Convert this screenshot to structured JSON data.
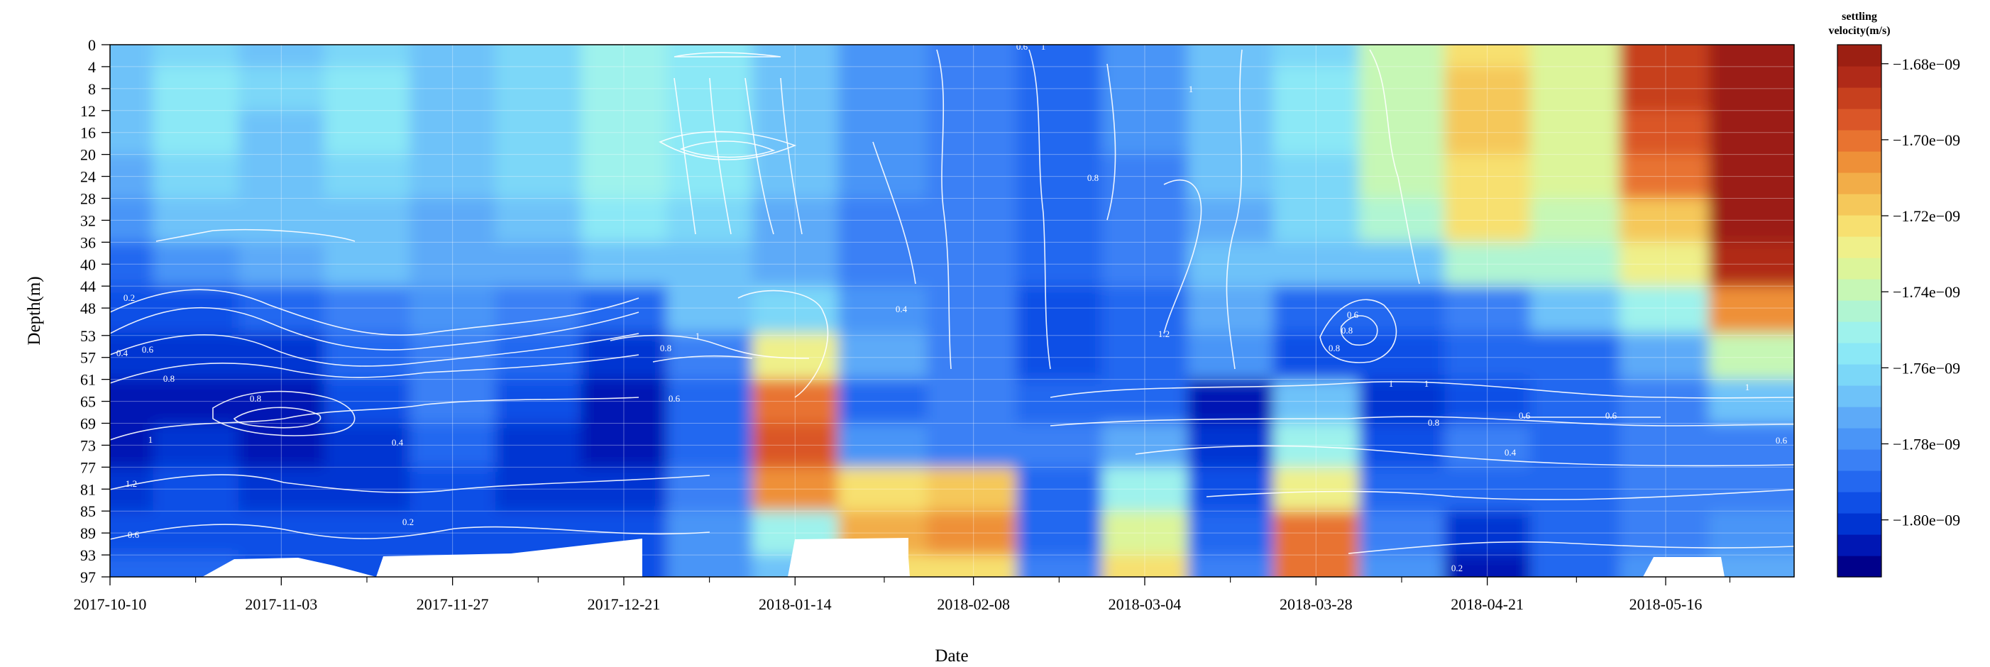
{
  "chart_data": {
    "type": "heatmap",
    "title": "",
    "xlabel": "Date",
    "ylabel": "Depth(m)",
    "x_ticks": [
      "2017-10-10",
      "2017-11-03",
      "2017-11-27",
      "2017-12-21",
      "2018-01-14",
      "2018-02-08",
      "2018-03-04",
      "2018-03-28",
      "2018-04-21",
      "2018-05-16"
    ],
    "y_ticks": [
      0,
      4,
      8,
      12,
      16,
      20,
      24,
      28,
      32,
      36,
      40,
      44,
      48,
      53,
      57,
      61,
      65,
      69,
      73,
      77,
      81,
      85,
      89,
      93,
      97
    ],
    "y_reversed": true,
    "xlim": [
      "2017-10-10",
      "2018-06-03"
    ],
    "ylim": [
      0,
      97
    ],
    "grid": true,
    "colorbar": {
      "title_line1": "settling",
      "title_line2": "velocity(m/s)",
      "tick_labels": [
        "−1.68e−09",
        "−1.70e−09",
        "−1.72e−09",
        "−1.74e−09",
        "−1.76e−09",
        "−1.78e−09",
        "−1.80e−09"
      ],
      "tick_values": [
        -1.68e-09,
        -1.7e-09,
        -1.72e-09,
        -1.74e-09,
        -1.76e-09,
        -1.78e-09,
        -1.8e-09
      ],
      "range": [
        -1.815e-09,
        -1.675e-09
      ],
      "colors": [
        "#00008B",
        "#0017B4",
        "#0034D2",
        "#0F4FE6",
        "#2468F0",
        "#3A80F5",
        "#4A95F7",
        "#5DAAF8",
        "#6EC2F9",
        "#7BD7F8",
        "#8BE8F6",
        "#9EF2EC",
        "#B0F5D2",
        "#C6F7B5",
        "#DCF59A",
        "#EFF08A",
        "#F7E070",
        "#F5C85A",
        "#F2AD48",
        "#EE9038",
        "#E87330",
        "#DA5628",
        "#C7401E",
        "#B02A18",
        "#9C1F12"
      ],
      "legend_placement": "right"
    },
    "field": {
      "x_dates": [
        "2017-10-10",
        "2017-10-22",
        "2017-11-03",
        "2017-11-15",
        "2017-11-27",
        "2017-12-09",
        "2017-12-21",
        "2018-01-02",
        "2018-01-14",
        "2018-01-26",
        "2018-02-08",
        "2018-02-20",
        "2018-03-04",
        "2018-03-16",
        "2018-03-28",
        "2018-04-09",
        "2018-04-21",
        "2018-05-03",
        "2018-05-16",
        "2018-05-28"
      ],
      "depths": [
        0,
        8,
        16,
        24,
        32,
        40,
        48,
        57,
        65,
        73,
        81,
        89,
        97
      ],
      "values": [
        [
          -1.768,
          -1.76,
          -1.765,
          -1.76,
          -1.77,
          -1.762,
          -1.752,
          -1.754,
          -1.77,
          -1.78,
          -1.785,
          -1.79,
          -1.778,
          -1.77,
          -1.76,
          -1.74,
          -1.72,
          -1.735,
          -1.69,
          -1.68
        ],
        [
          -1.768,
          -1.758,
          -1.764,
          -1.758,
          -1.768,
          -1.76,
          -1.752,
          -1.754,
          -1.768,
          -1.778,
          -1.784,
          -1.79,
          -1.778,
          -1.768,
          -1.758,
          -1.738,
          -1.718,
          -1.733,
          -1.69,
          -1.68
        ],
        [
          -1.77,
          -1.758,
          -1.765,
          -1.758,
          -1.767,
          -1.76,
          -1.752,
          -1.755,
          -1.768,
          -1.778,
          -1.784,
          -1.79,
          -1.778,
          -1.766,
          -1.758,
          -1.738,
          -1.718,
          -1.733,
          -1.692,
          -1.68
        ],
        [
          -1.772,
          -1.76,
          -1.768,
          -1.76,
          -1.77,
          -1.762,
          -1.752,
          -1.758,
          -1.77,
          -1.78,
          -1.785,
          -1.792,
          -1.782,
          -1.77,
          -1.76,
          -1.742,
          -1.72,
          -1.735,
          -1.7,
          -1.68
        ],
        [
          -1.778,
          -1.765,
          -1.77,
          -1.765,
          -1.772,
          -1.765,
          -1.756,
          -1.762,
          -1.772,
          -1.782,
          -1.786,
          -1.792,
          -1.782,
          -1.772,
          -1.762,
          -1.745,
          -1.725,
          -1.74,
          -1.715,
          -1.68
        ],
        [
          -1.79,
          -1.78,
          -1.775,
          -1.77,
          -1.775,
          -1.772,
          -1.77,
          -1.768,
          -1.772,
          -1.782,
          -1.786,
          -1.792,
          -1.784,
          -1.77,
          -1.77,
          -1.765,
          -1.745,
          -1.745,
          -1.73,
          -1.682
        ],
        [
          -1.798,
          -1.795,
          -1.792,
          -1.784,
          -1.778,
          -1.782,
          -1.792,
          -1.77,
          -1.76,
          -1.78,
          -1.786,
          -1.794,
          -1.788,
          -1.775,
          -1.79,
          -1.79,
          -1.782,
          -1.77,
          -1.75,
          -1.705
        ],
        [
          -1.8,
          -1.8,
          -1.8,
          -1.792,
          -1.782,
          -1.79,
          -1.8,
          -1.782,
          -1.73,
          -1.775,
          -1.786,
          -1.794,
          -1.79,
          -1.78,
          -1.798,
          -1.798,
          -1.792,
          -1.79,
          -1.775,
          -1.74
        ],
        [
          -1.806,
          -1.804,
          -1.806,
          -1.798,
          -1.786,
          -1.796,
          -1.808,
          -1.79,
          -1.7,
          -1.792,
          -1.786,
          -1.79,
          -1.79,
          -1.805,
          -1.77,
          -1.8,
          -1.795,
          -1.792,
          -1.782,
          -1.77
        ],
        [
          -1.805,
          -1.802,
          -1.804,
          -1.8,
          -1.79,
          -1.8,
          -1.806,
          -1.79,
          -1.695,
          -1.78,
          -1.786,
          -1.786,
          -1.775,
          -1.8,
          -1.75,
          -1.795,
          -1.782,
          -1.79,
          -1.785,
          -1.782
        ],
        [
          -1.8,
          -1.798,
          -1.8,
          -1.8,
          -1.796,
          -1.8,
          -1.8,
          -1.785,
          -1.705,
          -1.72,
          -1.715,
          -1.79,
          -1.75,
          -1.795,
          -1.73,
          -1.788,
          -1.79,
          -1.79,
          -1.786,
          -1.786
        ],
        [
          -1.795,
          -1.795,
          -1.796,
          -1.796,
          -1.796,
          -1.796,
          -1.796,
          -1.78,
          -1.75,
          -1.712,
          -1.705,
          -1.79,
          -1.735,
          -1.79,
          -1.7,
          -1.785,
          -1.8,
          -1.79,
          -1.782,
          -1.78
        ],
        [
          -1.792,
          -1.792,
          -1.794,
          -1.794,
          -1.794,
          -1.794,
          -1.794,
          -1.776,
          -1.765,
          -1.725,
          -1.72,
          -1.782,
          -1.722,
          -1.785,
          -1.7,
          -1.78,
          -1.806,
          -1.79,
          -1.78,
          -1.775
        ]
      ],
      "value_scale": "1e-9"
    },
    "contour_labels": [
      "0.2",
      "0.4",
      "0.6",
      "0.8",
      "1",
      "1.2",
      "0.6",
      "0.8",
      "0.4",
      "0.2",
      "0.6",
      "0.8",
      "1",
      "0.6",
      "0.6",
      "0.4",
      "0.8",
      "0.6",
      "1.2",
      "0.4",
      "0.6",
      "1",
      "1",
      "0.8",
      "0.8",
      "1",
      "1",
      "0.8",
      "0.2",
      "0.6",
      "1"
    ]
  }
}
